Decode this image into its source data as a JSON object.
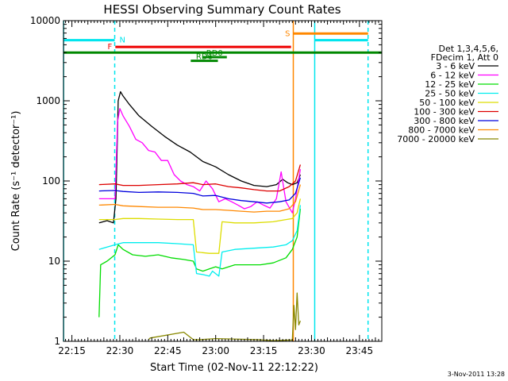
{
  "chart_data": {
    "type": "line",
    "title": "HESSI Observing Summary Count Rates",
    "xlabel": "Start Time (02-Nov-11 22:12:22)",
    "ylabel": "Count Rate (s⁻¹ detector⁻¹)",
    "x_range_min": [
      12,
      52
    ],
    "x_ticks": [
      {
        "min": 15,
        "label": "22:15"
      },
      {
        "min": 30,
        "label": "22:30"
      },
      {
        "min": 45,
        "label": "22:45"
      },
      {
        "min": 60,
        "label": "23:00"
      },
      {
        "min": 75,
        "label": "23:15"
      },
      {
        "min": 90,
        "label": "23:30"
      },
      {
        "min": 105,
        "label": "23:45"
      }
    ],
    "xlim_min": [
      12.37,
      112
    ],
    "ylim": [
      1,
      10000
    ],
    "y_scale": "log",
    "y_ticks": [
      {
        "v": 1,
        "label": "1"
      },
      {
        "v": 10,
        "label": "10"
      },
      {
        "v": 100,
        "label": "100"
      },
      {
        "v": 1000,
        "label": "1000"
      },
      {
        "v": 10000,
        "label": "10000"
      }
    ],
    "legend_header": [
      "Det 1,3,4,5,6,",
      "FDecim 1, Att 0"
    ],
    "legend_position": "right",
    "series": [
      {
        "name": "3 - 6 keV",
        "color": "#000000",
        "points": [
          [
            23.5,
            30
          ],
          [
            26,
            32
          ],
          [
            28,
            30
          ],
          [
            28.8,
            60
          ],
          [
            29.5,
            1000
          ],
          [
            30.2,
            1300
          ],
          [
            31,
            1150
          ],
          [
            33,
            900
          ],
          [
            36,
            650
          ],
          [
            40,
            480
          ],
          [
            44,
            360
          ],
          [
            48,
            280
          ],
          [
            52,
            230
          ],
          [
            56,
            175
          ],
          [
            60,
            150
          ],
          [
            64,
            120
          ],
          [
            68,
            100
          ],
          [
            72,
            88
          ],
          [
            76,
            85
          ],
          [
            79,
            90
          ],
          [
            81,
            105
          ],
          [
            82.5,
            95
          ],
          [
            84,
            90
          ],
          [
            85.5,
            95
          ],
          [
            86.5,
            120
          ]
        ]
      },
      {
        "name": "6 - 12 keV",
        "color": "#ff00ff",
        "points": [
          [
            23.5,
            60
          ],
          [
            28.5,
            60
          ],
          [
            29.3,
            550
          ],
          [
            30,
            800
          ],
          [
            31,
            650
          ],
          [
            33,
            480
          ],
          [
            35,
            330
          ],
          [
            37,
            300
          ],
          [
            39,
            240
          ],
          [
            41,
            230
          ],
          [
            43,
            180
          ],
          [
            45,
            180
          ],
          [
            47,
            120
          ],
          [
            49,
            100
          ],
          [
            51,
            90
          ],
          [
            53,
            85
          ],
          [
            55,
            75
          ],
          [
            57,
            100
          ],
          [
            59,
            80
          ],
          [
            61,
            55
          ],
          [
            63,
            60
          ],
          [
            65,
            55
          ],
          [
            67,
            50
          ],
          [
            69,
            45
          ],
          [
            71,
            48
          ],
          [
            73,
            55
          ],
          [
            75,
            50
          ],
          [
            77,
            46
          ],
          [
            79,
            60
          ],
          [
            80.5,
            130
          ],
          [
            82,
            55
          ],
          [
            84,
            40
          ],
          [
            85,
            60
          ],
          [
            86.5,
            140
          ]
        ]
      },
      {
        "name": "12 - 25 keV",
        "color": "#00dd00",
        "points": [
          [
            23.5,
            2
          ],
          [
            24,
            9
          ],
          [
            26,
            10
          ],
          [
            28.5,
            12
          ],
          [
            29.5,
            16
          ],
          [
            31,
            14
          ],
          [
            34,
            12
          ],
          [
            38,
            11.5
          ],
          [
            42,
            12
          ],
          [
            46,
            11
          ],
          [
            50,
            10.5
          ],
          [
            53,
            10
          ],
          [
            54,
            8
          ],
          [
            56,
            7.5
          ],
          [
            58,
            8
          ],
          [
            60,
            8.5
          ],
          [
            62,
            8
          ],
          [
            66,
            9
          ],
          [
            70,
            9
          ],
          [
            74,
            9
          ],
          [
            78,
            9.5
          ],
          [
            82,
            11
          ],
          [
            84,
            14
          ],
          [
            85.5,
            20
          ],
          [
            86.5,
            45
          ]
        ]
      },
      {
        "name": "25 - 50 keV",
        "color": "#00eeee",
        "points": [
          [
            23.5,
            14
          ],
          [
            26,
            15
          ],
          [
            28.5,
            16
          ],
          [
            31,
            17
          ],
          [
            36,
            17
          ],
          [
            42,
            17
          ],
          [
            48,
            16.5
          ],
          [
            53,
            16
          ],
          [
            54,
            7
          ],
          [
            56,
            6.8
          ],
          [
            58,
            6.5
          ],
          [
            59,
            7.5
          ],
          [
            61,
            6.5
          ],
          [
            62,
            13
          ],
          [
            66,
            14
          ],
          [
            72,
            14.5
          ],
          [
            78,
            15
          ],
          [
            82,
            16
          ],
          [
            84,
            18
          ],
          [
            85.5,
            24
          ],
          [
            86.5,
            50
          ]
        ]
      },
      {
        "name": "50 - 100 keV",
        "color": "#dddd00",
        "points": [
          [
            23.5,
            33
          ],
          [
            28.5,
            33
          ],
          [
            31,
            34
          ],
          [
            36,
            34
          ],
          [
            42,
            33.5
          ],
          [
            48,
            33
          ],
          [
            53,
            33
          ],
          [
            54,
            13
          ],
          [
            58,
            12.5
          ],
          [
            61,
            12.5
          ],
          [
            62,
            31
          ],
          [
            66,
            30
          ],
          [
            72,
            30
          ],
          [
            78,
            31
          ],
          [
            82,
            33
          ],
          [
            84,
            34
          ],
          [
            85.5,
            40
          ],
          [
            86.5,
            60
          ]
        ]
      },
      {
        "name": "100 - 300 keV",
        "color": "#dd0000",
        "points": [
          [
            23.5,
            90
          ],
          [
            28.5,
            92
          ],
          [
            31,
            88
          ],
          [
            36,
            88
          ],
          [
            42,
            90
          ],
          [
            48,
            92
          ],
          [
            53,
            95
          ],
          [
            56,
            90
          ],
          [
            60,
            92
          ],
          [
            64,
            85
          ],
          [
            68,
            82
          ],
          [
            72,
            78
          ],
          [
            76,
            75
          ],
          [
            80,
            75
          ],
          [
            83,
            85
          ],
          [
            85,
            100
          ],
          [
            86.5,
            160
          ]
        ]
      },
      {
        "name": "300 - 800 keV",
        "color": "#0000dd",
        "points": [
          [
            23.5,
            75
          ],
          [
            28.5,
            76
          ],
          [
            31,
            74
          ],
          [
            36,
            72
          ],
          [
            42,
            73
          ],
          [
            48,
            72
          ],
          [
            53,
            70
          ],
          [
            56,
            65
          ],
          [
            60,
            66
          ],
          [
            64,
            60
          ],
          [
            68,
            57
          ],
          [
            72,
            55
          ],
          [
            76,
            53
          ],
          [
            80,
            55
          ],
          [
            83,
            58
          ],
          [
            85,
            70
          ],
          [
            86.5,
            110
          ]
        ]
      },
      {
        "name": "800 - 7000 keV",
        "color": "#ff8800",
        "points": [
          [
            23.5,
            50
          ],
          [
            28.5,
            51
          ],
          [
            31,
            49
          ],
          [
            36,
            48
          ],
          [
            42,
            47
          ],
          [
            48,
            47
          ],
          [
            53,
            46
          ],
          [
            56,
            44
          ],
          [
            60,
            44
          ],
          [
            64,
            43
          ],
          [
            68,
            42
          ],
          [
            72,
            41
          ],
          [
            76,
            42
          ],
          [
            80,
            42
          ],
          [
            83,
            45
          ],
          [
            85,
            55
          ],
          [
            86.5,
            90
          ]
        ]
      },
      {
        "name": "7000 - 20000 keV",
        "color": "#888800",
        "points": [
          [
            39,
            1.05
          ],
          [
            39.5,
            1.1
          ],
          [
            50,
            1.3
          ],
          [
            53,
            1.05
          ],
          [
            55,
            1.05
          ],
          [
            60,
            1.08
          ],
          [
            73,
            1.05
          ],
          [
            78,
            1.02
          ],
          [
            84,
            1.04
          ],
          [
            84.5,
            2.8
          ],
          [
            85,
            1.4
          ],
          [
            85.5,
            4
          ],
          [
            86,
            1.6
          ],
          [
            86.5,
            1.8
          ]
        ]
      }
    ],
    "flags": [
      {
        "label": "N",
        "color": "#00e5ee",
        "y": 5700,
        "segments": [
          [
            12.37,
            28.4
          ],
          [
            91,
            107.7
          ]
        ]
      },
      {
        "label": "F",
        "color": "#ee0000",
        "y": 4700,
        "segments": [
          [
            28.6,
            83.6
          ]
        ]
      },
      {
        "label": "S",
        "color": "#ff8800",
        "y": 6900,
        "segments": [
          [
            84.3,
            107.7
          ]
        ]
      },
      {
        "label": "",
        "color": "#008800",
        "y": 4000,
        "segments": [
          [
            12.37,
            112
          ]
        ]
      },
      {
        "label": "RD0",
        "color": "#008800",
        "y": 3500,
        "segments": [
          [
            55.8,
            63.5
          ]
        ]
      },
      {
        "label": "RD6",
        "color": "#008800",
        "y": 3150,
        "segments": [
          [
            52.2,
            60.7
          ]
        ]
      }
    ],
    "vlines": [
      {
        "min": 12.4,
        "color": "#00e5ee",
        "dashed": false
      },
      {
        "min": 28.4,
        "color": "#00e5ee",
        "dashed": true
      },
      {
        "min": 84.3,
        "color": "#ff8800",
        "dashed": false
      },
      {
        "min": 91.0,
        "color": "#00e5ee",
        "dashed": false
      },
      {
        "min": 107.7,
        "color": "#00e5ee",
        "dashed": true
      }
    ],
    "timestamp": "3-Nov-2011 13:28"
  }
}
